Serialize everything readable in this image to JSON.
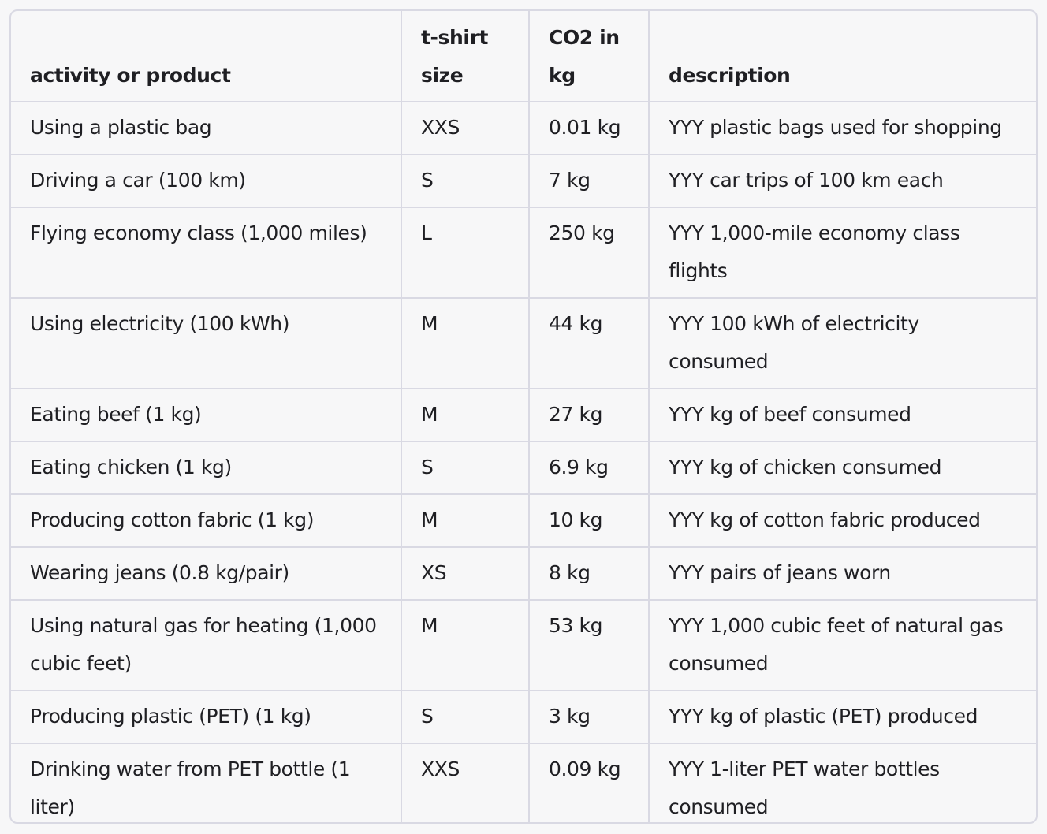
{
  "table": {
    "headers": [
      "activity or product",
      "t-shirt size",
      "CO2 in kg",
      "description"
    ],
    "rows": [
      [
        "Using a plastic bag",
        "XXS",
        "0.01 kg",
        "YYY plastic bags used for shopping"
      ],
      [
        "Driving a car (100 km)",
        "S",
        "7 kg",
        "YYY car trips of 100 km each"
      ],
      [
        "Flying economy class (1,000 miles)",
        "L",
        "250 kg",
        "YYY 1,000-mile economy class flights"
      ],
      [
        "Using electricity (100 kWh)",
        "M",
        "44 kg",
        "YYY 100 kWh of electricity consumed"
      ],
      [
        "Eating beef (1 kg)",
        "M",
        "27 kg",
        "YYY kg of beef consumed"
      ],
      [
        "Eating chicken (1 kg)",
        "S",
        "6.9 kg",
        "YYY kg of chicken consumed"
      ],
      [
        "Producing cotton fabric (1 kg)",
        "M",
        "10 kg",
        "YYY kg of cotton fabric produced"
      ],
      [
        "Wearing jeans (0.8 kg/pair)",
        "XS",
        "8 kg",
        "YYY pairs of jeans worn"
      ],
      [
        "Using natural gas for heating (1,000 cubic feet)",
        "M",
        "53 kg",
        "YYY 1,000 cubic feet of natural gas consumed"
      ],
      [
        "Producing plastic (PET) (1 kg)",
        "S",
        "3 kg",
        "YYY kg of plastic (PET) produced"
      ],
      [
        "Drinking water from PET bottle (1 liter)",
        "XXS",
        "0.09 kg",
        "YYY 1-liter PET water bottles consumed"
      ]
    ]
  }
}
